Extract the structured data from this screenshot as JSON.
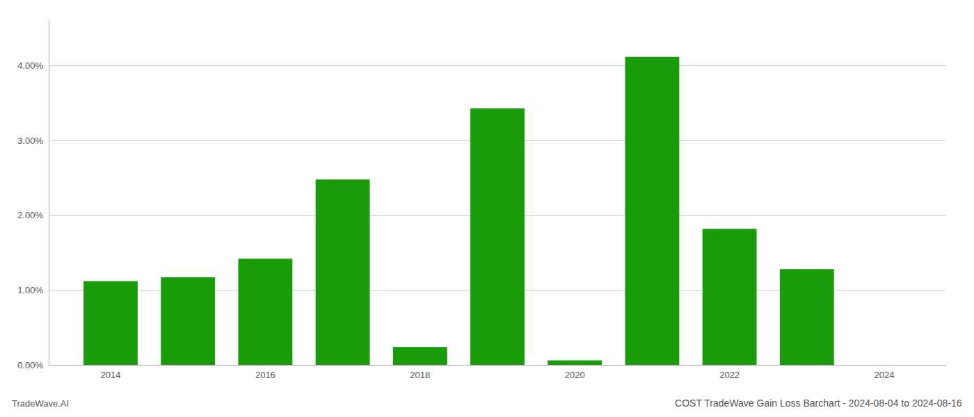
{
  "chart_data": {
    "type": "bar",
    "title": "COST TradeWave Gain Loss Barchart - 2024-08-04 to 2024-08-16",
    "annotations": [
      "TradeWave.AI"
    ],
    "x": [
      2014,
      2015,
      2016,
      2017,
      2018,
      2019,
      2020,
      2021,
      2022,
      2023
    ],
    "values": [
      0.0112,
      0.0117,
      0.0142,
      0.0248,
      0.0024,
      0.0343,
      0.0006,
      0.0412,
      0.0182,
      0.0128
    ],
    "color": "#1a9c0a",
    "xlim": [
      2013.2,
      2024.8
    ],
    "xticks": [
      2014,
      2016,
      2018,
      2020,
      2022,
      2024
    ],
    "ylim": [
      0,
      0.046
    ],
    "yticks": [
      {
        "value": 0,
        "label": "0.00%"
      },
      {
        "value": 0.01,
        "label": "1.00%"
      },
      {
        "value": 0.02,
        "label": "2.00%"
      },
      {
        "value": 0.03,
        "label": "3.00%"
      },
      {
        "value": 0.04,
        "label": "4.00%"
      }
    ],
    "grid": true
  }
}
